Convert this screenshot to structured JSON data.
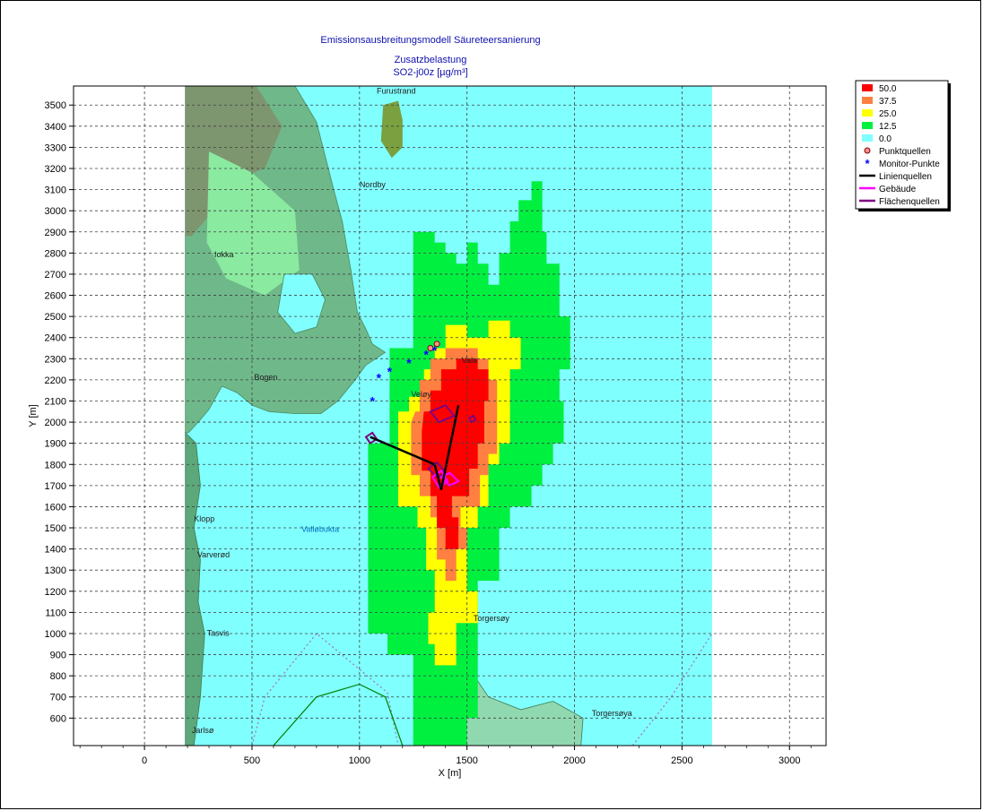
{
  "chart_data": {
    "type": "heatmap",
    "title": "Emissionsausbreitungsmodell Säureteersanierung",
    "subtitle_1": "Zusatzbelastung",
    "subtitle_2": "SO2-j00z [µg/m³]",
    "xlabel": "X [m]",
    "ylabel": "Y [m]",
    "xlim": [
      -330,
      3170
    ],
    "ylim": [
      470,
      3590
    ],
    "x_ticks": [
      0,
      500,
      1000,
      1500,
      2000,
      2500,
      3000
    ],
    "y_ticks": [
      600,
      700,
      800,
      900,
      1000,
      1100,
      1200,
      1300,
      1400,
      1500,
      1600,
      1700,
      1800,
      1900,
      2000,
      2100,
      2200,
      2300,
      2400,
      2500,
      2600,
      2700,
      2800,
      2900,
      3000,
      3100,
      3200,
      3300,
      3400,
      3500
    ],
    "grid": true,
    "background_extent": {
      "x": [
        190,
        2640
      ],
      "y": [
        470,
        3590
      ]
    },
    "legend_position": "top-right",
    "color_classes": [
      {
        "label": "50.0",
        "color": "#ff0000"
      },
      {
        "label": "37.5",
        "color": "#ff8040"
      },
      {
        "label": "25.0",
        "color": "#ffff00"
      },
      {
        "label": "12.5",
        "color": "#00f040"
      },
      {
        "label": "0.0",
        "color": "#80ffff"
      }
    ],
    "legend_symbols": [
      {
        "label": "Punktquellen",
        "symbol": "point-source-icon"
      },
      {
        "label": "Monitor-Punkte",
        "symbol": "asterisk-icon"
      },
      {
        "label": "Linienquellen",
        "symbol": "line-black-icon"
      },
      {
        "label": "Gebäude",
        "symbol": "line-magenta-icon"
      },
      {
        "label": "Flächenquellen",
        "symbol": "line-purple-icon"
      }
    ],
    "contour_polygons": [
      {
        "level": 12.5,
        "points": [
          [
            1040,
            1580
          ],
          [
            1040,
            1480
          ],
          [
            1040,
            1000
          ],
          [
            1130,
            1000
          ],
          [
            1130,
            900
          ],
          [
            1250,
            900
          ],
          [
            1250,
            470
          ],
          [
            1500,
            470
          ],
          [
            1500,
            600
          ],
          [
            1550,
            600
          ],
          [
            1550,
            1250
          ],
          [
            1650,
            1250
          ],
          [
            1650,
            1500
          ],
          [
            1700,
            1500
          ],
          [
            1700,
            1600
          ],
          [
            1800,
            1600
          ],
          [
            1800,
            1700
          ],
          [
            1850,
            1700
          ],
          [
            1850,
            1800
          ],
          [
            1900,
            1800
          ],
          [
            1900,
            1900
          ],
          [
            1950,
            1900
          ],
          [
            1950,
            2100
          ],
          [
            1930,
            2100
          ],
          [
            1930,
            2250
          ],
          [
            1980,
            2250
          ],
          [
            1980,
            2500
          ],
          [
            1930,
            2500
          ],
          [
            1930,
            2750
          ],
          [
            1870,
            2750
          ],
          [
            1870,
            2900
          ],
          [
            1850,
            2900
          ],
          [
            1850,
            3140
          ],
          [
            1800,
            3140
          ],
          [
            1800,
            3050
          ],
          [
            1740,
            3050
          ],
          [
            1740,
            2950
          ],
          [
            1700,
            2950
          ],
          [
            1700,
            2800
          ],
          [
            1650,
            2800
          ],
          [
            1650,
            2650
          ],
          [
            1600,
            2650
          ],
          [
            1600,
            2750
          ],
          [
            1550,
            2750
          ],
          [
            1550,
            2850
          ],
          [
            1500,
            2850
          ],
          [
            1500,
            2750
          ],
          [
            1450,
            2750
          ],
          [
            1450,
            2800
          ],
          [
            1400,
            2800
          ],
          [
            1400,
            2850
          ],
          [
            1350,
            2850
          ],
          [
            1350,
            2900
          ],
          [
            1250,
            2900
          ],
          [
            1250,
            2350
          ],
          [
            1140,
            2350
          ],
          [
            1140,
            1900
          ],
          [
            1040,
            1900
          ]
        ]
      },
      {
        "level": 25.0,
        "points": [
          [
            1180,
            2050
          ],
          [
            1180,
            1700
          ],
          [
            1180,
            1600
          ],
          [
            1270,
            1600
          ],
          [
            1270,
            1500
          ],
          [
            1310,
            1500
          ],
          [
            1310,
            1300
          ],
          [
            1350,
            1300
          ],
          [
            1350,
            1100
          ],
          [
            1320,
            1100
          ],
          [
            1320,
            950
          ],
          [
            1350,
            950
          ],
          [
            1350,
            850
          ],
          [
            1450,
            850
          ],
          [
            1450,
            1050
          ],
          [
            1550,
            1050
          ],
          [
            1550,
            1200
          ],
          [
            1500,
            1200
          ],
          [
            1500,
            1500
          ],
          [
            1550,
            1500
          ],
          [
            1550,
            1600
          ],
          [
            1600,
            1600
          ],
          [
            1600,
            1800
          ],
          [
            1650,
            1800
          ],
          [
            1650,
            1900
          ],
          [
            1700,
            1900
          ],
          [
            1700,
            2250
          ],
          [
            1750,
            2250
          ],
          [
            1750,
            2400
          ],
          [
            1700,
            2400
          ],
          [
            1700,
            2480
          ],
          [
            1600,
            2480
          ],
          [
            1600,
            2400
          ],
          [
            1500,
            2400
          ],
          [
            1500,
            2460
          ],
          [
            1400,
            2460
          ],
          [
            1400,
            2350
          ],
          [
            1350,
            2350
          ],
          [
            1350,
            2250
          ],
          [
            1300,
            2250
          ],
          [
            1300,
            2120
          ],
          [
            1230,
            2120
          ],
          [
            1230,
            2050
          ]
        ]
      },
      {
        "level": 37.5,
        "points": [
          [
            1240,
            2000
          ],
          [
            1240,
            1750
          ],
          [
            1280,
            1750
          ],
          [
            1280,
            1650
          ],
          [
            1330,
            1650
          ],
          [
            1330,
            1550
          ],
          [
            1360,
            1550
          ],
          [
            1360,
            1350
          ],
          [
            1400,
            1350
          ],
          [
            1400,
            1250
          ],
          [
            1450,
            1250
          ],
          [
            1450,
            1400
          ],
          [
            1500,
            1400
          ],
          [
            1500,
            1500
          ],
          [
            1470,
            1500
          ],
          [
            1470,
            1600
          ],
          [
            1560,
            1600
          ],
          [
            1560,
            1750
          ],
          [
            1600,
            1750
          ],
          [
            1600,
            1850
          ],
          [
            1640,
            1850
          ],
          [
            1640,
            2200
          ],
          [
            1600,
            2200
          ],
          [
            1600,
            2300
          ],
          [
            1550,
            2300
          ],
          [
            1550,
            2350
          ],
          [
            1400,
            2350
          ],
          [
            1400,
            2300
          ],
          [
            1330,
            2300
          ],
          [
            1330,
            2200
          ],
          [
            1280,
            2200
          ],
          [
            1280,
            2050
          ],
          [
            1260,
            2050
          ]
        ]
      },
      {
        "level": 50.0,
        "points": [
          [
            1290,
            1960
          ],
          [
            1290,
            1770
          ],
          [
            1330,
            1770
          ],
          [
            1330,
            1650
          ],
          [
            1360,
            1650
          ],
          [
            1360,
            1500
          ],
          [
            1400,
            1500
          ],
          [
            1400,
            1400
          ],
          [
            1460,
            1400
          ],
          [
            1460,
            1550
          ],
          [
            1430,
            1550
          ],
          [
            1430,
            1650
          ],
          [
            1510,
            1650
          ],
          [
            1510,
            1780
          ],
          [
            1550,
            1780
          ],
          [
            1550,
            1900
          ],
          [
            1580,
            1900
          ],
          [
            1580,
            2100
          ],
          [
            1600,
            2100
          ],
          [
            1600,
            2250
          ],
          [
            1550,
            2250
          ],
          [
            1550,
            2300
          ],
          [
            1450,
            2300
          ],
          [
            1450,
            2250
          ],
          [
            1380,
            2250
          ],
          [
            1380,
            2150
          ],
          [
            1330,
            2150
          ],
          [
            1330,
            2050
          ],
          [
            1300,
            2050
          ]
        ]
      }
    ],
    "line_sources": [
      [
        [
          1050,
          1930
        ],
        [
          1350,
          1800
        ]
      ],
      [
        [
          1350,
          1800
        ],
        [
          1380,
          1680
        ]
      ],
      [
        [
          1380,
          1680
        ],
        [
          1460,
          2080
        ]
      ]
    ],
    "monitor_points": [
      [
        1060,
        2100
      ],
      [
        1090,
        2210
      ],
      [
        1140,
        2240
      ],
      [
        1230,
        2280
      ],
      [
        1310,
        2320
      ],
      [
        1350,
        2340
      ]
    ],
    "point_sources": [
      [
        1330,
        2350
      ],
      [
        1360,
        2370
      ]
    ],
    "area_sources": [
      [
        [
          1030,
          1930
        ],
        [
          1060,
          1950
        ],
        [
          1080,
          1920
        ],
        [
          1050,
          1900
        ]
      ],
      [
        [
          1330,
          2050
        ],
        [
          1400,
          2080
        ],
        [
          1440,
          2030
        ],
        [
          1370,
          2000
        ]
      ],
      [
        [
          1510,
          2020
        ],
        [
          1530,
          2030
        ],
        [
          1540,
          2010
        ],
        [
          1520,
          2000
        ]
      ],
      [
        [
          1320,
          1780
        ],
        [
          1360,
          1810
        ],
        [
          1400,
          1760
        ],
        [
          1360,
          1740
        ]
      ]
    ],
    "buildings": [
      [
        [
          1340,
          1740
        ],
        [
          1380,
          1770
        ],
        [
          1410,
          1720
        ],
        [
          1370,
          1690
        ]
      ],
      [
        [
          1380,
          1740
        ],
        [
          1420,
          1760
        ],
        [
          1460,
          1720
        ],
        [
          1420,
          1700
        ]
      ]
    ],
    "map_labels": [
      {
        "text": "Furustrand",
        "x": 1080,
        "y": 3555
      },
      {
        "text": "Nordby",
        "x": 1000,
        "y": 3110
      },
      {
        "text": "Iokka",
        "x": 325,
        "y": 2780
      },
      {
        "text": "Bogen",
        "x": 510,
        "y": 2200
      },
      {
        "text": "Vala",
        "x": 1475,
        "y": 2280
      },
      {
        "text": "Veløy",
        "x": 1240,
        "y": 2120
      },
      {
        "text": "Klopp",
        "x": 230,
        "y": 1530
      },
      {
        "text": "Varverød",
        "x": 245,
        "y": 1360
      },
      {
        "text": "Valløbukta",
        "x": 730,
        "y": 1480
      },
      {
        "text": "Torgersøy",
        "x": 1530,
        "y": 1060
      },
      {
        "text": "Tasvis",
        "x": 290,
        "y": 990
      },
      {
        "text": "Torgersøya",
        "x": 2080,
        "y": 610
      },
      {
        "text": "Jarlsø",
        "x": 220,
        "y": 530
      }
    ]
  }
}
